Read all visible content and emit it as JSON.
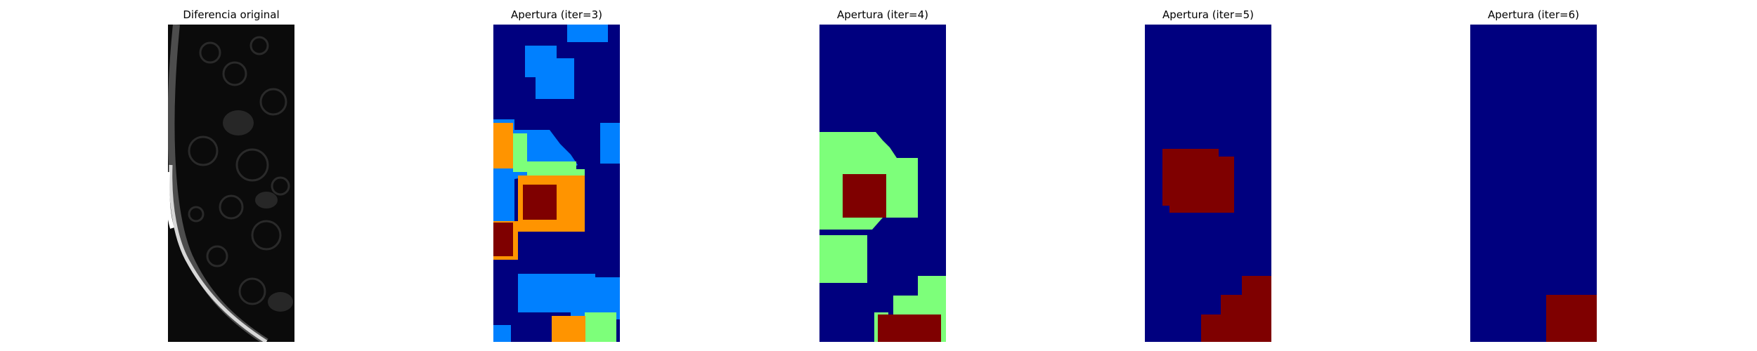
{
  "panels": [
    {
      "title": "Diferencia original",
      "colormap": "gray"
    },
    {
      "title": "Apertura (iter=3)",
      "colormap": "jet"
    },
    {
      "title": "Apertura (iter=4)",
      "colormap": "jet"
    },
    {
      "title": "Apertura (iter=5)",
      "colormap": "jet"
    },
    {
      "title": "Apertura (iter=6)",
      "colormap": "jet"
    }
  ],
  "colors": {
    "background_jet": "#00007f",
    "light_blue": "#0080ff",
    "light_green": "#7dff7a",
    "orange": "#ff9400",
    "dark_red": "#7f0000",
    "gray_dark": "#0a0a0a",
    "gray_light": "#d9d9d9"
  }
}
